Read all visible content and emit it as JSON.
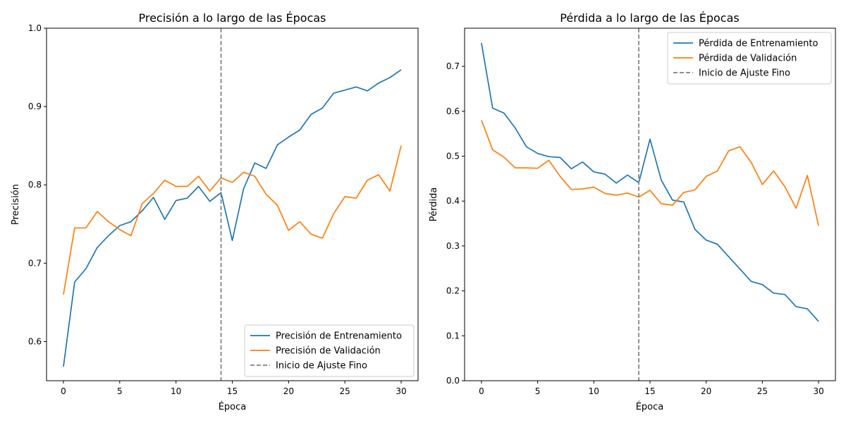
{
  "chart_data": [
    {
      "type": "line",
      "title": "Precisión a lo largo de las Épocas",
      "xlabel": "Época",
      "ylabel": "Precisión",
      "xlim": [
        -1.5,
        31.5
      ],
      "ylim": [
        0.55,
        1.0
      ],
      "xticks": [
        0,
        5,
        10,
        15,
        20,
        25,
        30
      ],
      "yticks": [
        0.6,
        0.7,
        0.8,
        0.9,
        1.0
      ],
      "ytick_labels": [
        "0.6",
        "0.7",
        "0.8",
        "0.9",
        "1.0"
      ],
      "grid": false,
      "legend_position": "bottom-right",
      "x": [
        0,
        1,
        2,
        3,
        4,
        5,
        6,
        7,
        8,
        9,
        10,
        11,
        12,
        13,
        14,
        15,
        16,
        17,
        18,
        19,
        20,
        21,
        22,
        23,
        24,
        25,
        26,
        27,
        28,
        29,
        30
      ],
      "series": [
        {
          "name": "Precisión de Entrenamiento",
          "color": "#1f77b4",
          "values": [
            0.568,
            0.676,
            0.693,
            0.72,
            0.735,
            0.748,
            0.753,
            0.767,
            0.784,
            0.756,
            0.78,
            0.783,
            0.798,
            0.779,
            0.79,
            0.729,
            0.795,
            0.828,
            0.821,
            0.851,
            0.861,
            0.87,
            0.89,
            0.898,
            0.917,
            0.921,
            0.925,
            0.92,
            0.93,
            0.937,
            0.947
          ]
        },
        {
          "name": "Precisión de Validación",
          "color": "#ff7f0e",
          "values": [
            0.66,
            0.745,
            0.745,
            0.766,
            0.753,
            0.743,
            0.735,
            0.776,
            0.789,
            0.806,
            0.798,
            0.798,
            0.811,
            0.792,
            0.809,
            0.803,
            0.816,
            0.811,
            0.788,
            0.774,
            0.742,
            0.753,
            0.737,
            0.732,
            0.763,
            0.785,
            0.783,
            0.806,
            0.813,
            0.792,
            0.85
          ]
        }
      ],
      "vline": {
        "x": 14,
        "name": "Inicio de Ajuste Fino",
        "color": "#808080"
      }
    },
    {
      "type": "line",
      "title": "Pérdida a lo largo de las Épocas",
      "xlabel": "Época",
      "ylabel": "Pérdida",
      "xlim": [
        -1.5,
        31.5
      ],
      "ylim": [
        0.0,
        0.785
      ],
      "xticks": [
        0,
        5,
        10,
        15,
        20,
        25,
        30
      ],
      "yticks": [
        0.0,
        0.1,
        0.2,
        0.3,
        0.4,
        0.5,
        0.6,
        0.7
      ],
      "ytick_labels": [
        "0.0",
        "0.1",
        "0.2",
        "0.3",
        "0.4",
        "0.5",
        "0.6",
        "0.7"
      ],
      "grid": false,
      "legend_position": "top-right",
      "x": [
        0,
        1,
        2,
        3,
        4,
        5,
        6,
        7,
        8,
        9,
        10,
        11,
        12,
        13,
        14,
        15,
        16,
        17,
        18,
        19,
        20,
        21,
        22,
        23,
        24,
        25,
        26,
        27,
        28,
        29,
        30
      ],
      "series": [
        {
          "name": "Pérdida de Entrenamiento",
          "color": "#1f77b4",
          "values": [
            0.752,
            0.607,
            0.596,
            0.563,
            0.521,
            0.506,
            0.499,
            0.497,
            0.472,
            0.487,
            0.465,
            0.46,
            0.44,
            0.458,
            0.441,
            0.538,
            0.447,
            0.402,
            0.398,
            0.337,
            0.313,
            0.304,
            0.276,
            0.249,
            0.221,
            0.214,
            0.195,
            0.192,
            0.165,
            0.16,
            0.132
          ]
        },
        {
          "name": "Pérdida de Validación",
          "color": "#ff7f0e",
          "values": [
            0.58,
            0.514,
            0.498,
            0.474,
            0.474,
            0.473,
            0.491,
            0.455,
            0.426,
            0.427,
            0.431,
            0.417,
            0.413,
            0.418,
            0.409,
            0.424,
            0.394,
            0.391,
            0.419,
            0.425,
            0.455,
            0.467,
            0.512,
            0.521,
            0.486,
            0.437,
            0.467,
            0.432,
            0.384,
            0.457,
            0.345
          ]
        }
      ],
      "vline": {
        "x": 14,
        "name": "Inicio de Ajuste Fino",
        "color": "#808080"
      }
    }
  ]
}
